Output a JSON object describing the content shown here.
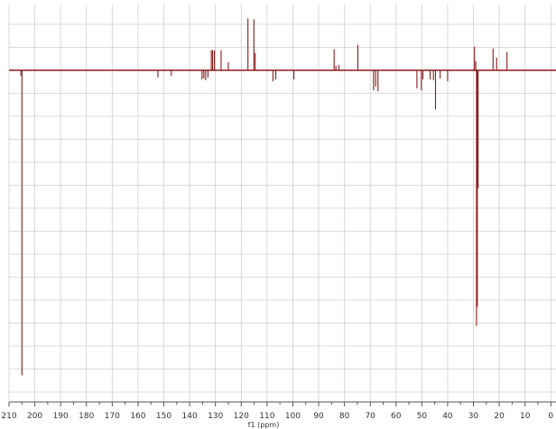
{
  "colors": {
    "grid": "#cfcfcf",
    "axis": "#555555",
    "signal": "#8b1a1a",
    "background": "#ffffff"
  },
  "chart_data": {
    "type": "line",
    "xlabel": "f1 (ppm)",
    "x_reversed": true,
    "xlim": [
      210,
      -2
    ],
    "ylim": [
      -335,
      60
    ],
    "grid": true,
    "x_ticks": [
      210,
      200,
      190,
      180,
      170,
      160,
      150,
      140,
      130,
      120,
      110,
      100,
      90,
      80,
      70,
      60,
      50,
      40,
      30,
      20,
      10,
      0
    ],
    "x_tick_labels": [
      "210",
      "200",
      "190",
      "180",
      "170",
      "160",
      "150",
      "140",
      "130",
      "120",
      "110",
      "100",
      "90",
      "80",
      "70",
      "60",
      "50",
      "40",
      "30",
      "20",
      "10",
      "0"
    ],
    "series": [
      {
        "peaks": [
          {
            "ppm": 205.0,
            "intensity": -335
          },
          {
            "ppm": 205.4,
            "intensity": -6
          },
          {
            "ppm": 152.3,
            "intensity": -8
          },
          {
            "ppm": 147.1,
            "intensity": -6
          },
          {
            "ppm": 135.2,
            "intensity": -10
          },
          {
            "ppm": 134.5,
            "intensity": -9
          },
          {
            "ppm": 133.8,
            "intensity": -11
          },
          {
            "ppm": 132.9,
            "intensity": -8
          },
          {
            "ppm": 131.6,
            "intensity": 22
          },
          {
            "ppm": 131.1,
            "intensity": 22
          },
          {
            "ppm": 130.4,
            "intensity": 22
          },
          {
            "ppm": 127.8,
            "intensity": 22
          },
          {
            "ppm": 125.0,
            "intensity": 9
          },
          {
            "ppm": 117.4,
            "intensity": 57
          },
          {
            "ppm": 115.1,
            "intensity": 56
          },
          {
            "ppm": 114.6,
            "intensity": 19
          },
          {
            "ppm": 107.7,
            "intensity": -12
          },
          {
            "ppm": 106.6,
            "intensity": -10
          },
          {
            "ppm": 99.6,
            "intensity": -10
          },
          {
            "ppm": 84.0,
            "intensity": 23
          },
          {
            "ppm": 83.3,
            "intensity": 5
          },
          {
            "ppm": 82.1,
            "intensity": 6
          },
          {
            "ppm": 74.8,
            "intensity": 28
          },
          {
            "ppm": 68.7,
            "intensity": -22
          },
          {
            "ppm": 67.9,
            "intensity": -18
          },
          {
            "ppm": 67.0,
            "intensity": -23
          },
          {
            "ppm": 51.9,
            "intensity": -20
          },
          {
            "ppm": 50.2,
            "intensity": -22
          },
          {
            "ppm": 49.6,
            "intensity": -10
          },
          {
            "ppm": 46.8,
            "intensity": -10
          },
          {
            "ppm": 45.5,
            "intensity": -11
          },
          {
            "ppm": 44.7,
            "intensity": -43
          },
          {
            "ppm": 42.9,
            "intensity": -9
          },
          {
            "ppm": 40.0,
            "intensity": -12
          },
          {
            "ppm": 29.6,
            "intensity": 26
          },
          {
            "ppm": 29.1,
            "intensity": 10
          },
          {
            "ppm": 28.8,
            "intensity": -281
          },
          {
            "ppm": 28.5,
            "intensity": -260
          },
          {
            "ppm": 28.2,
            "intensity": -130
          },
          {
            "ppm": 22.4,
            "intensity": 24
          },
          {
            "ppm": 21.0,
            "intensity": 14
          },
          {
            "ppm": 17.0,
            "intensity": 20
          }
        ]
      }
    ]
  }
}
